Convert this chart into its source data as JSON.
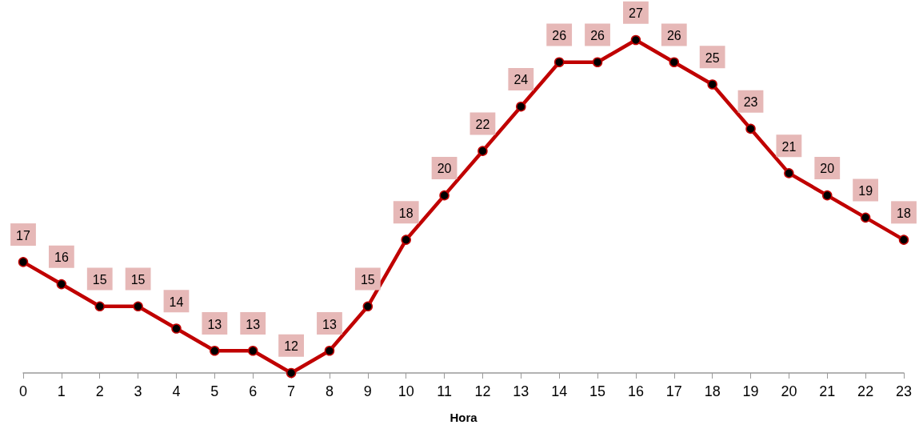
{
  "chart_data": {
    "type": "line",
    "xlabel": "Hora",
    "x": [
      0,
      1,
      2,
      3,
      4,
      5,
      6,
      7,
      8,
      9,
      10,
      11,
      12,
      13,
      14,
      15,
      16,
      17,
      18,
      19,
      20,
      21,
      22,
      23
    ],
    "xlim": [
      0,
      23
    ],
    "xticks": [
      0,
      1,
      2,
      3,
      4,
      5,
      6,
      7,
      8,
      9,
      10,
      11,
      12,
      13,
      14,
      15,
      16,
      17,
      18,
      19,
      20,
      21,
      22,
      23
    ],
    "series": [
      {
        "color": "#c00000",
        "values": [
          17,
          16,
          15,
          15,
          14,
          13,
          13,
          12,
          13,
          15,
          18,
          20,
          22,
          24,
          26,
          26,
          27,
          26,
          25,
          23,
          21,
          20,
          19,
          18
        ]
      }
    ],
    "data_labels": true,
    "marker": "circle",
    "line_style": "solid",
    "tick_labels": "x"
  }
}
